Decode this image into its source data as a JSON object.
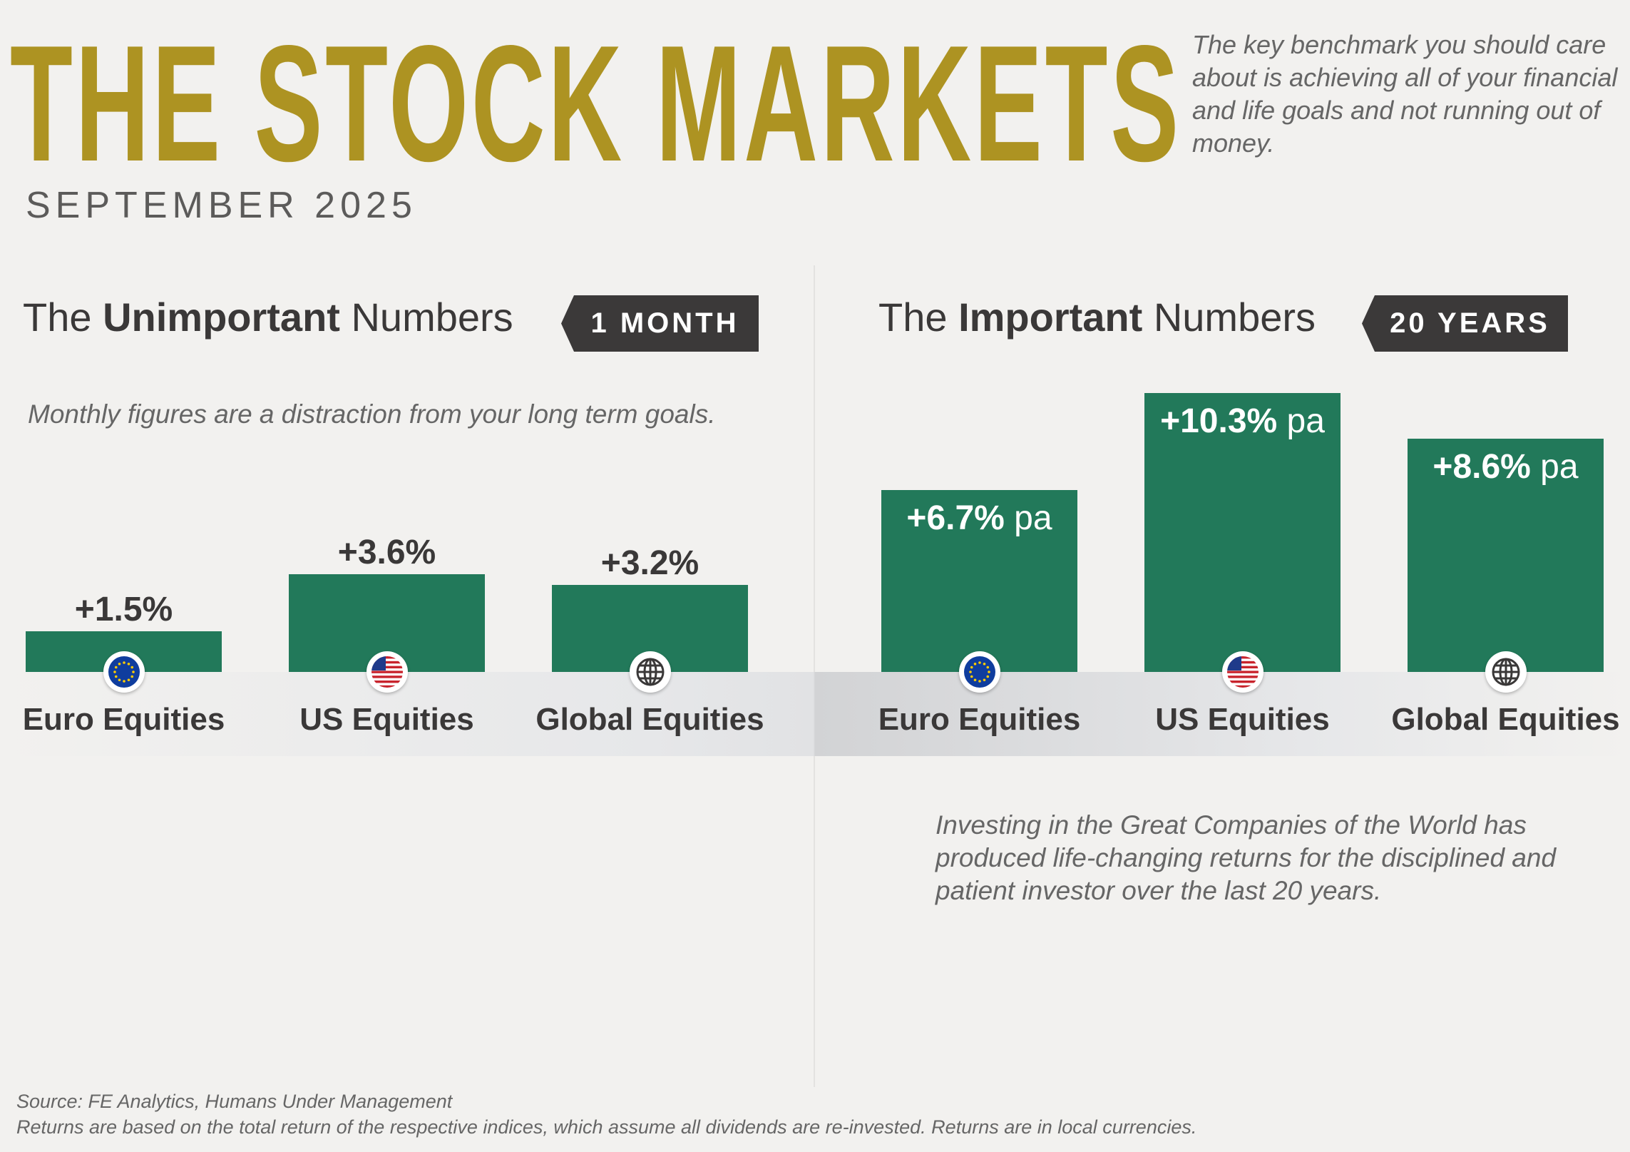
{
  "header": {
    "title": "THE STOCK MARKETS",
    "subtitle": "SEPTEMBER 2025",
    "intro": "The key benchmark you should care about is achieving all of your financial and life goals and not running out of money."
  },
  "left_panel": {
    "heading_pre": "The ",
    "heading_bold": "Unimportant",
    "heading_post": " Numbers",
    "badge": "1 MONTH",
    "note": "Monthly figures are a distraction from your long term goals."
  },
  "right_panel": {
    "heading_pre": "The ",
    "heading_bold": "Important",
    "heading_post": " Numbers",
    "badge": "20 YEARS",
    "note": "Investing in the Great Companies of the World has produced life-changing returns for the disciplined and patient investor over the last 20 years."
  },
  "footer": {
    "source": "Source: FE Analytics, Humans Under Management",
    "disclaimer": "Returns are based on the total return of the respective indices, which assume all dividends are re-invested. Returns are in local currencies."
  },
  "colors": {
    "bar": "#22795a",
    "title": "#ad9322",
    "badge": "#3b3939"
  },
  "chart_data": [
    {
      "type": "bar",
      "title": "1 MONTH",
      "categories": [
        "Euro Equities",
        "US Equities",
        "Global Equities"
      ],
      "icons": [
        "eu-flag-icon",
        "us-flag-icon",
        "globe-icon"
      ],
      "values": [
        1.5,
        3.6,
        3.2
      ],
      "labels": [
        "+1.5%",
        "+3.6%",
        "+3.2%"
      ],
      "unit_suffix": "",
      "label_position": "above",
      "ylim": [
        0,
        10.3
      ],
      "grid": false
    },
    {
      "type": "bar",
      "title": "20 YEARS",
      "categories": [
        "Euro Equities",
        "US Equities",
        "Global Equities"
      ],
      "icons": [
        "eu-flag-icon",
        "us-flag-icon",
        "globe-icon"
      ],
      "values": [
        6.7,
        10.3,
        8.6
      ],
      "labels": [
        "+6.7%",
        "+10.3%",
        "+8.6%"
      ],
      "unit_suffix": " pa",
      "label_position": "inside",
      "ylim": [
        0,
        10.3
      ],
      "grid": false
    }
  ]
}
